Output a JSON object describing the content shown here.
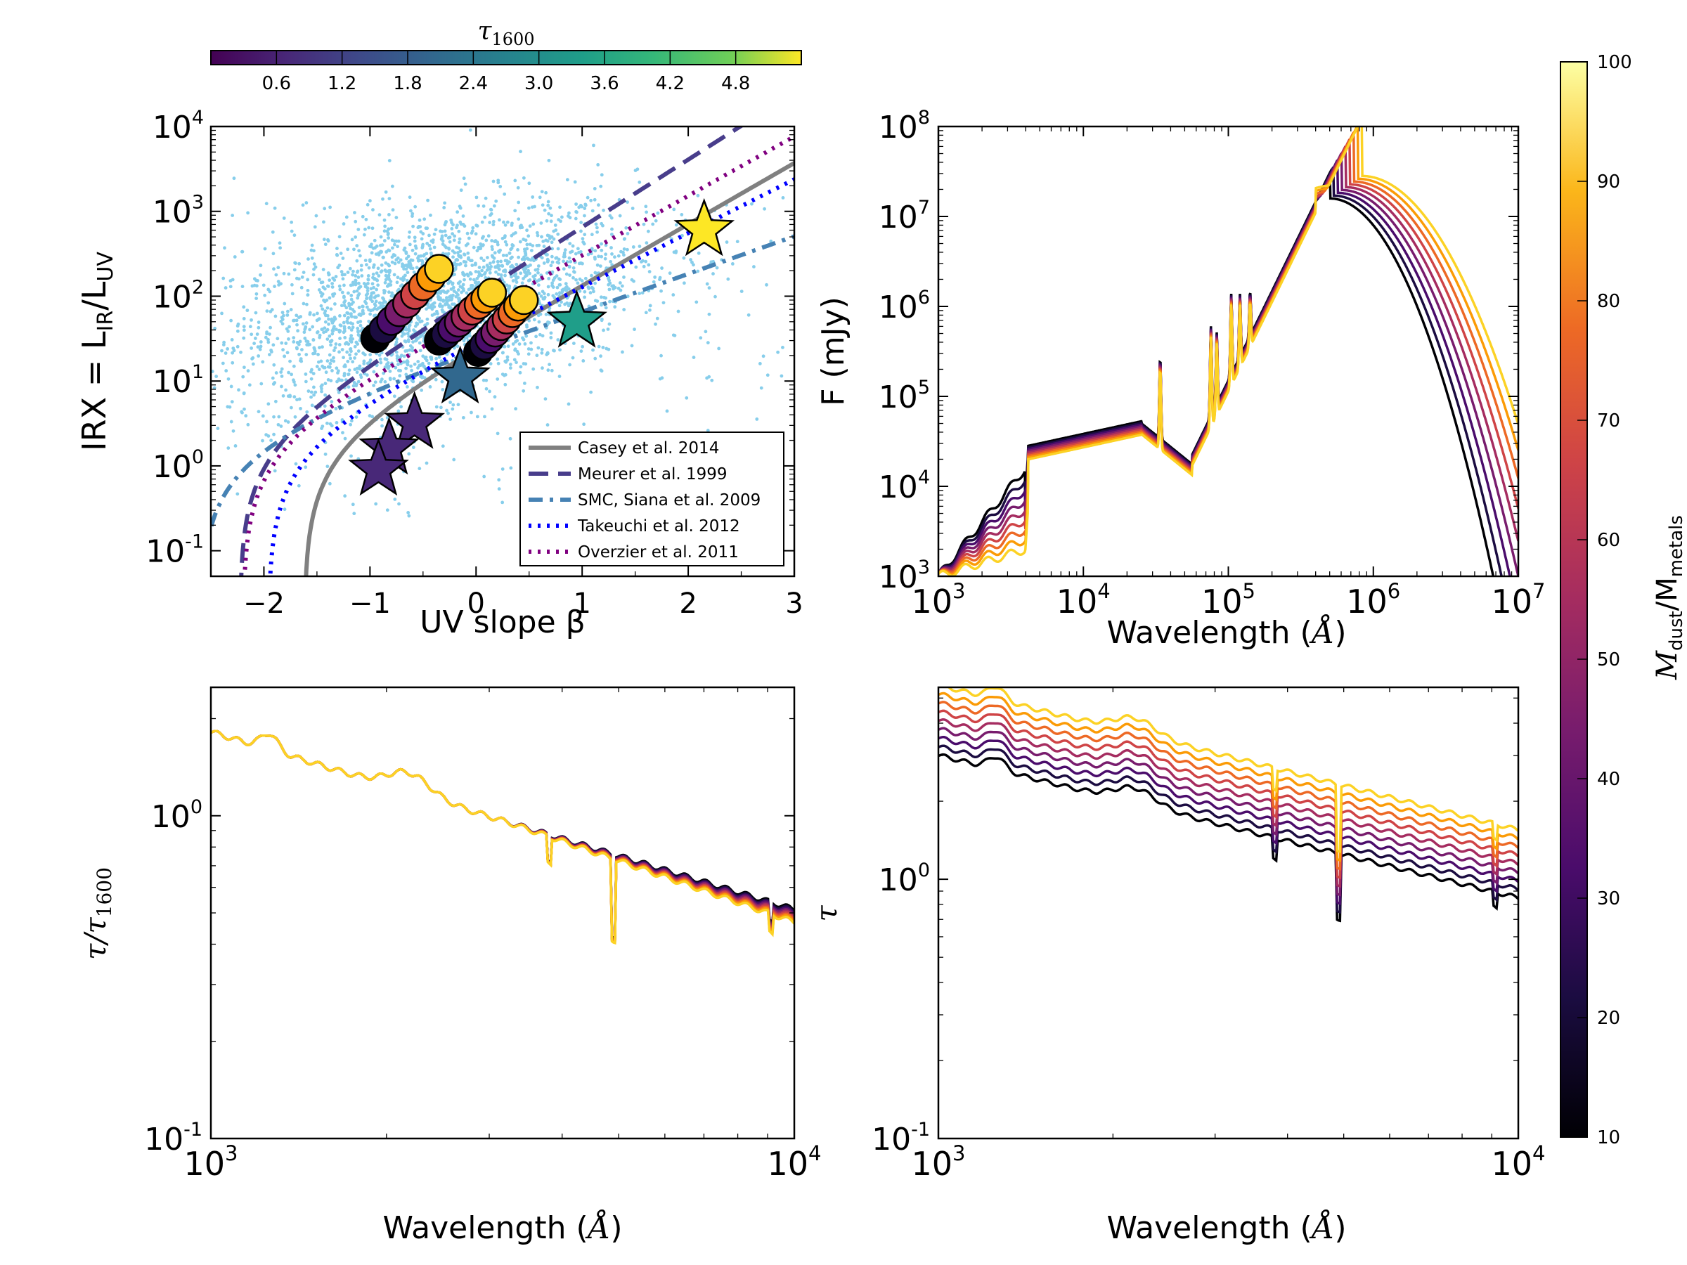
{
  "chart_data": [
    {
      "id": "irx-beta",
      "type": "scatter",
      "xlabel": "UV slope β",
      "ylabel": "IRX = L_IR/L_UV",
      "xlim": [
        -2.5,
        3
      ],
      "ylim": [
        0.05,
        10000
      ],
      "yscale": "log",
      "x_ticks": [
        "−2",
        "−1",
        "0",
        "1",
        "2",
        "3"
      ],
      "y_ticks": [
        {
          "base": "10",
          "exp": "-1",
          "value": 0.1
        },
        {
          "base": "10",
          "exp": "0",
          "value": 1
        },
        {
          "base": "10",
          "exp": "1",
          "value": 10
        },
        {
          "base": "10",
          "exp": "2",
          "value": 100
        },
        {
          "base": "10",
          "exp": "3",
          "value": 1000
        },
        {
          "base": "10",
          "exp": "4",
          "value": 10000
        }
      ],
      "background_points_color": "#87ceeb",
      "relations": [
        {
          "name": "Casey et al. 2014",
          "color": "#808080",
          "style": "solid"
        },
        {
          "name": "Meurer et al. 1999",
          "color": "#483d8b",
          "style": "dashed"
        },
        {
          "name": "SMC, Siana et al. 2009",
          "color": "#4682b4",
          "style": "dashdot"
        },
        {
          "name": "Takeuchi et al. 2012",
          "color": "#0000ff",
          "style": "dotted"
        },
        {
          "name": "Overzier et al. 2011",
          "color": "#800080",
          "style": "dotted"
        }
      ],
      "circle_tracks": [
        {
          "beta_start": -0.95,
          "irx_start": 32,
          "beta_end": -0.35,
          "irx_end": 210
        },
        {
          "beta_start": -0.35,
          "irx_start": 30,
          "beta_end": 0.15,
          "irx_end": 110
        },
        {
          "beta_start": 0.02,
          "irx_start": 22,
          "beta_end": 0.45,
          "irx_end": 90
        }
      ],
      "stars": [
        {
          "beta": 2.15,
          "irx": 600,
          "tau1600": 5.0
        },
        {
          "beta": 0.95,
          "irx": 50,
          "tau1600": 2.8
        },
        {
          "beta": -0.15,
          "irx": 11,
          "tau1600": 1.5
        },
        {
          "beta": -0.58,
          "irx": 3.2,
          "tau1600": 0.7
        },
        {
          "beta": -0.82,
          "irx": 1.6,
          "tau1600": 0.5
        },
        {
          "beta": -0.92,
          "irx": 0.9,
          "tau1600": 0.45
        }
      ],
      "colorbar": {
        "label": "τ1600",
        "ticks": [
          "0.6",
          "1.2",
          "1.8",
          "2.4",
          "3.0",
          "3.6",
          "4.2",
          "4.8"
        ],
        "range": [
          0,
          5.4
        ]
      }
    },
    {
      "id": "sed",
      "type": "line",
      "xlabel": "Wavelength (Å)",
      "ylabel": "F (mJy)",
      "xlim": [
        1000,
        10000000
      ],
      "ylim": [
        1000,
        100000000
      ],
      "x_ticks": [
        {
          "base": "10",
          "exp": "3"
        },
        {
          "base": "10",
          "exp": "4"
        },
        {
          "base": "10",
          "exp": "5"
        },
        {
          "base": "10",
          "exp": "6"
        },
        {
          "base": "10",
          "exp": "7"
        }
      ],
      "y_ticks": [
        {
          "base": "10",
          "exp": "3"
        },
        {
          "base": "10",
          "exp": "4"
        },
        {
          "base": "10",
          "exp": "5"
        },
        {
          "base": "10",
          "exp": "6"
        },
        {
          "base": "10",
          "exp": "7"
        },
        {
          "base": "10",
          "exp": "8"
        }
      ],
      "n_series": 9
    },
    {
      "id": "tau-norm",
      "type": "line",
      "xlabel": "Wavelength (Å)",
      "ylabel": "τ/τ1600",
      "xlim": [
        1000,
        10000
      ],
      "ylim": [
        0.1,
        2.5
      ],
      "x_ticks": [
        {
          "base": "10",
          "exp": "3"
        },
        {
          "base": "10",
          "exp": "4"
        }
      ],
      "y_ticks": [
        {
          "base": "10",
          "exp": "-1"
        },
        {
          "base": "10",
          "exp": "0"
        }
      ],
      "n_series": 9
    },
    {
      "id": "tau",
      "type": "line",
      "xlabel": "Wavelength (Å)",
      "ylabel": "τ",
      "xlim": [
        1000,
        10000
      ],
      "ylim": [
        0.1,
        5.5
      ],
      "x_ticks": [
        {
          "base": "10",
          "exp": "3"
        },
        {
          "base": "10",
          "exp": "4"
        }
      ],
      "y_ticks": [
        {
          "base": "10",
          "exp": "-1"
        },
        {
          "base": "10",
          "exp": "0"
        }
      ],
      "n_series": 9
    },
    {
      "id": "mdust-colorbar",
      "type": "colorbar",
      "label": "M_dust/M_metals",
      "ticks": [
        "10",
        "20",
        "30",
        "40",
        "50",
        "60",
        "70",
        "80",
        "90",
        "100"
      ],
      "range": [
        10,
        100
      ]
    }
  ]
}
